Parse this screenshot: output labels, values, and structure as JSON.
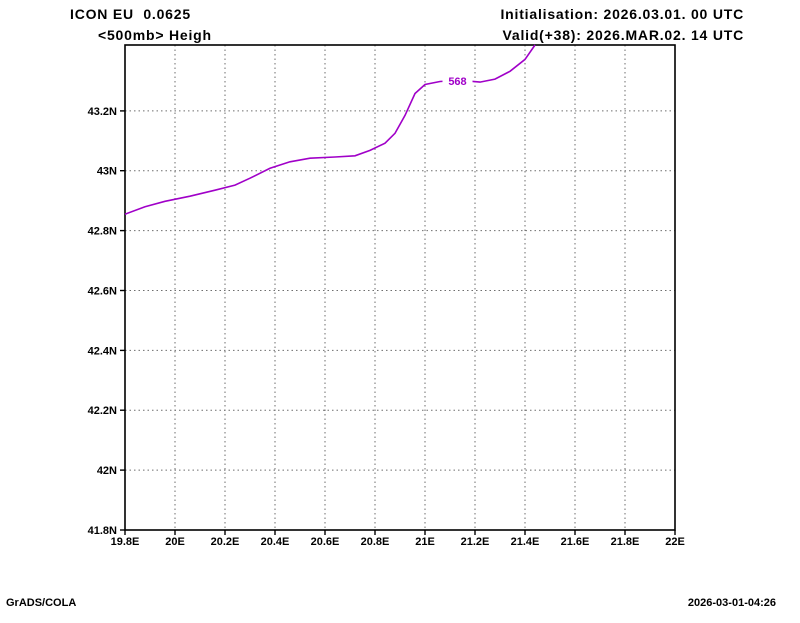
{
  "header": {
    "model": "ICON EU  0.0625",
    "field": "<500mb> Heigh",
    "init": "Initialisation: 2026.03.01. 00 UTC",
    "valid": "Valid(+38): 2026.MAR.02. 14 UTC"
  },
  "footer": {
    "credit": "GrADS/COLA",
    "timestamp": "2026-03-01-04:26"
  },
  "chart_data": {
    "type": "line",
    "title": "<500mb> Heigh",
    "xlabel": "",
    "ylabel": "",
    "xlim": [
      19.8,
      22.0
    ],
    "ylim": [
      41.8,
      43.42
    ],
    "grid": "dotted",
    "legend": "none",
    "x_ticks": [
      {
        "value": 19.8,
        "label": "19.8E"
      },
      {
        "value": 20.0,
        "label": "20E"
      },
      {
        "value": 20.2,
        "label": "20.2E"
      },
      {
        "value": 20.4,
        "label": "20.4E"
      },
      {
        "value": 20.6,
        "label": "20.6E"
      },
      {
        "value": 20.8,
        "label": "20.8E"
      },
      {
        "value": 21.0,
        "label": "21E"
      },
      {
        "value": 21.2,
        "label": "21.2E"
      },
      {
        "value": 21.4,
        "label": "21.4E"
      },
      {
        "value": 21.6,
        "label": "21.6E"
      },
      {
        "value": 21.8,
        "label": "21.8E"
      },
      {
        "value": 22.0,
        "label": "22E"
      }
    ],
    "y_ticks": [
      {
        "value": 41.8,
        "label": "41.8N"
      },
      {
        "value": 42.0,
        "label": "42N"
      },
      {
        "value": 42.2,
        "label": "42.2N"
      },
      {
        "value": 42.4,
        "label": "42.4N"
      },
      {
        "value": 42.6,
        "label": "42.6N"
      },
      {
        "value": 42.8,
        "label": "42.8N"
      },
      {
        "value": 43.0,
        "label": "43N"
      },
      {
        "value": 43.2,
        "label": "43.2N"
      }
    ],
    "series": [
      {
        "name": "568 contour",
        "color": "#a000c8",
        "label": {
          "text": "568",
          "x": 21.13,
          "y": 43.3
        },
        "points": [
          [
            19.8,
            42.855
          ],
          [
            19.88,
            42.88
          ],
          [
            19.96,
            42.898
          ],
          [
            20.06,
            42.915
          ],
          [
            20.16,
            42.935
          ],
          [
            20.24,
            42.952
          ],
          [
            20.3,
            42.975
          ],
          [
            20.38,
            43.008
          ],
          [
            20.46,
            43.03
          ],
          [
            20.54,
            43.042
          ],
          [
            20.64,
            43.046
          ],
          [
            20.72,
            43.05
          ],
          [
            20.78,
            43.068
          ],
          [
            20.84,
            43.092
          ],
          [
            20.88,
            43.125
          ],
          [
            20.92,
            43.185
          ],
          [
            20.96,
            43.258
          ],
          [
            21.0,
            43.288
          ],
          [
            21.06,
            43.298
          ],
          [
            21.14,
            43.302
          ],
          [
            21.22,
            43.296
          ],
          [
            21.28,
            43.306
          ],
          [
            21.34,
            43.332
          ],
          [
            21.4,
            43.372
          ],
          [
            21.44,
            43.42
          ]
        ]
      }
    ]
  }
}
